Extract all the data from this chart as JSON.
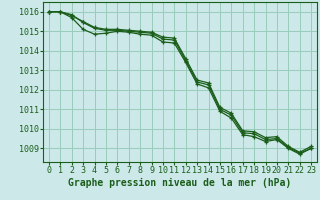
{
  "title": "Graphe pression niveau de la mer (hPa)",
  "background_color": "#cce8e8",
  "grid_color": "#99ccbb",
  "line_color": "#1a5e1a",
  "xlim": [
    -0.5,
    23.5
  ],
  "ylim": [
    1008.3,
    1016.5
  ],
  "yticks": [
    1009,
    1010,
    1011,
    1012,
    1013,
    1014,
    1015,
    1016
  ],
  "xticks": [
    0,
    1,
    2,
    3,
    4,
    5,
    6,
    7,
    8,
    9,
    10,
    11,
    12,
    13,
    14,
    15,
    16,
    17,
    18,
    19,
    20,
    21,
    22,
    23
  ],
  "series1": [
    1016,
    1016,
    1015.8,
    1015.5,
    1015.2,
    1015.1,
    1015.1,
    1015.05,
    1015.0,
    1014.95,
    1014.7,
    1014.65,
    1013.6,
    1012.5,
    1012.35,
    1011.1,
    1010.8,
    1009.9,
    1009.85,
    1009.55,
    1009.6,
    1009.1,
    1008.8,
    1009.1
  ],
  "series2": [
    1016,
    1016,
    1015.85,
    1015.45,
    1015.15,
    1015.05,
    1015.05,
    1015.0,
    1014.95,
    1014.9,
    1014.6,
    1014.55,
    1013.5,
    1012.4,
    1012.25,
    1011.0,
    1010.7,
    1009.8,
    1009.75,
    1009.45,
    1009.5,
    1009.05,
    1008.75,
    1009.0
  ],
  "series3": [
    1016,
    1016,
    1015.7,
    1015.1,
    1014.85,
    1014.9,
    1015.0,
    1014.95,
    1014.85,
    1014.8,
    1014.45,
    1014.4,
    1013.4,
    1012.3,
    1012.1,
    1010.9,
    1010.55,
    1009.7,
    1009.6,
    1009.35,
    1009.45,
    1009.0,
    1008.7,
    1009.0
  ],
  "tick_fontsize": 6,
  "xlabel_fontsize": 7
}
